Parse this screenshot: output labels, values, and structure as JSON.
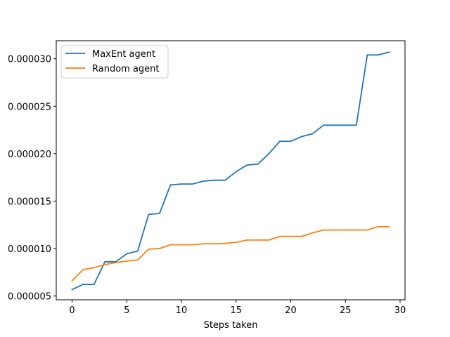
{
  "chart_data": {
    "type": "line",
    "title": "",
    "xlabel": "Steps taken",
    "ylabel": "",
    "xlim": [
      -1.45,
      30.45
    ],
    "ylim": [
      4.6e-06,
      3.19e-05
    ],
    "xticks": [
      0,
      5,
      10,
      15,
      20,
      25,
      30
    ],
    "yticks": [
      5e-06,
      1e-05,
      1.5e-05,
      2e-05,
      2.5e-05,
      3e-05
    ],
    "ytick_labels": [
      "0.000005",
      "0.000010",
      "0.000015",
      "0.000020",
      "0.000025",
      "0.000030"
    ],
    "grid": false,
    "legend_position": "upper-left",
    "x": [
      0,
      1,
      2,
      3,
      4,
      5,
      6,
      7,
      8,
      9,
      10,
      11,
      12,
      13,
      14,
      15,
      16,
      17,
      18,
      19,
      20,
      21,
      22,
      23,
      24,
      25,
      26,
      27,
      28,
      29
    ],
    "series": [
      {
        "name": "MaxEnt agent",
        "color": "#1f77b4",
        "values": [
          5.68e-06,
          6.22e-06,
          6.22e-06,
          8.6e-06,
          8.6e-06,
          9.45e-06,
          9.74e-06,
          1.36e-05,
          1.37e-05,
          1.67e-05,
          1.68e-05,
          1.68e-05,
          1.71e-05,
          1.72e-05,
          1.72e-05,
          1.81e-05,
          1.88e-05,
          1.89e-05,
          2e-05,
          2.13e-05,
          2.13e-05,
          2.18e-05,
          2.21e-05,
          2.3e-05,
          2.3e-05,
          2.3e-05,
          2.3e-05,
          3.04e-05,
          3.04e-05,
          3.07e-05
        ]
      },
      {
        "name": "Random agent",
        "color": "#ff7f0e",
        "values": [
          6.61e-06,
          7.78e-06,
          7.98e-06,
          8.3e-06,
          8.52e-06,
          8.68e-06,
          8.8e-06,
          9.93e-06,
          1e-05,
          1.04e-05,
          1.04e-05,
          1.04e-05,
          1.05e-05,
          1.05e-05,
          1.055e-05,
          1.065e-05,
          1.09e-05,
          1.09e-05,
          1.09e-05,
          1.128e-05,
          1.128e-05,
          1.128e-05,
          1.165e-05,
          1.195e-05,
          1.195e-05,
          1.195e-05,
          1.195e-05,
          1.195e-05,
          1.23e-05,
          1.23e-05
        ]
      }
    ]
  }
}
